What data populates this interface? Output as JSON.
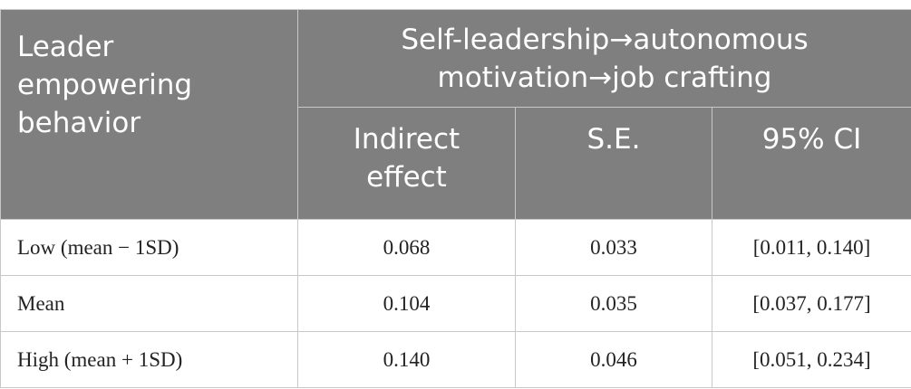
{
  "table": {
    "header": [
      "Leader empowering behavior",
      "Self-leadership→autonomous motivation→job crafting"
    ],
    "subheader": [
      "Indirect effect",
      "S.E.",
      "95% CI"
    ],
    "rows": [
      [
        "Low (mean − 1SD)",
        "0.068",
        "0.033",
        "[0.011, 0.140]"
      ],
      [
        "Mean",
        "0.104",
        "0.035",
        "[0.037, 0.177]"
      ],
      [
        "High (mean + 1SD)",
        "0.140",
        "0.046",
        "[0.051, 0.234]"
      ]
    ]
  }
}
